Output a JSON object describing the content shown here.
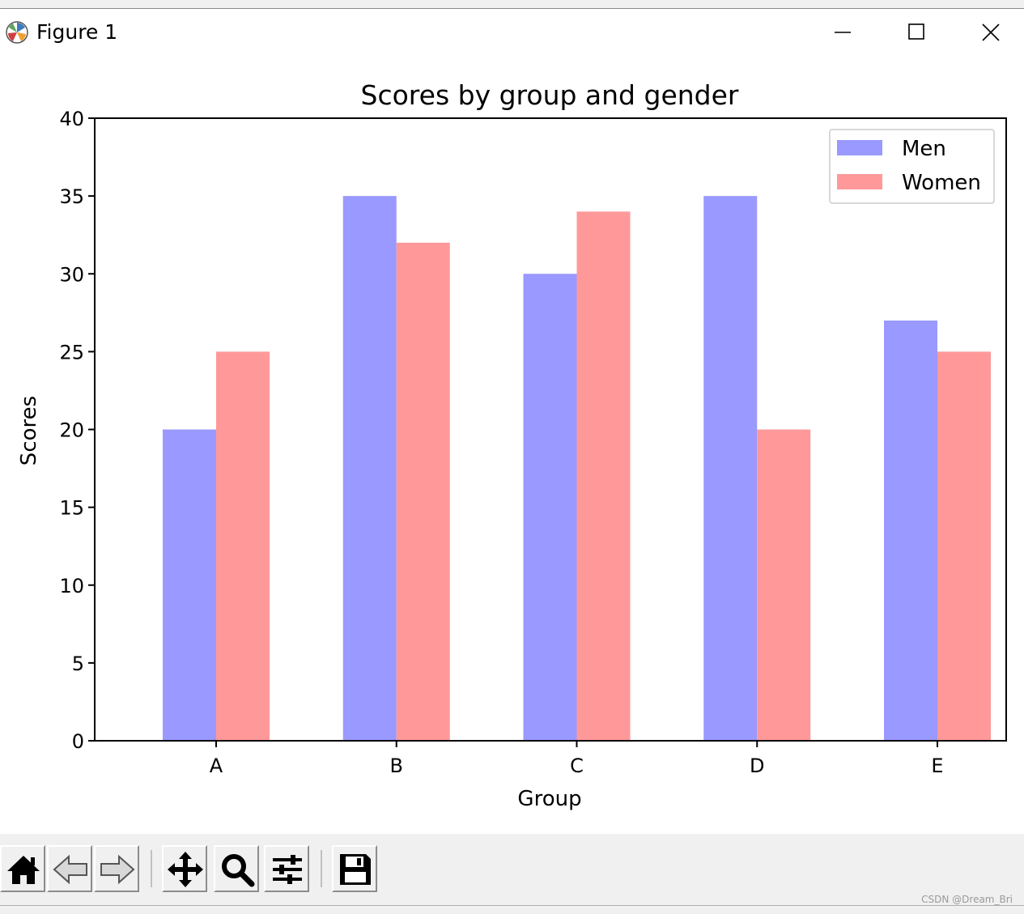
{
  "window": {
    "title": "Figure 1",
    "app_icon": "matplotlib-icon",
    "controls": [
      "minimize-icon",
      "maximize-icon",
      "close-icon"
    ]
  },
  "chart_data": {
    "type": "bar",
    "title": "Scores by group and gender",
    "xlabel": "Group",
    "ylabel": "Scores",
    "categories": [
      "A",
      "B",
      "C",
      "D",
      "E"
    ],
    "series": [
      {
        "name": "Men",
        "values": [
          20,
          35,
          30,
          35,
          27
        ],
        "color": "#9999ff"
      },
      {
        "name": "Women",
        "values": [
          25,
          32,
          34,
          20,
          25
        ],
        "color": "#ff9999"
      }
    ],
    "ylim": [
      0,
      40
    ],
    "yticks": [
      0,
      5,
      10,
      15,
      20,
      25,
      30,
      35,
      40
    ],
    "grid": false,
    "legend_position": "top-right"
  },
  "toolbar": {
    "buttons": [
      "home-icon",
      "back-icon",
      "forward-icon",
      "pan-icon",
      "zoom-icon",
      "configure-subplots-icon",
      "save-icon"
    ]
  },
  "watermark": "CSDN @Dream_Bri"
}
